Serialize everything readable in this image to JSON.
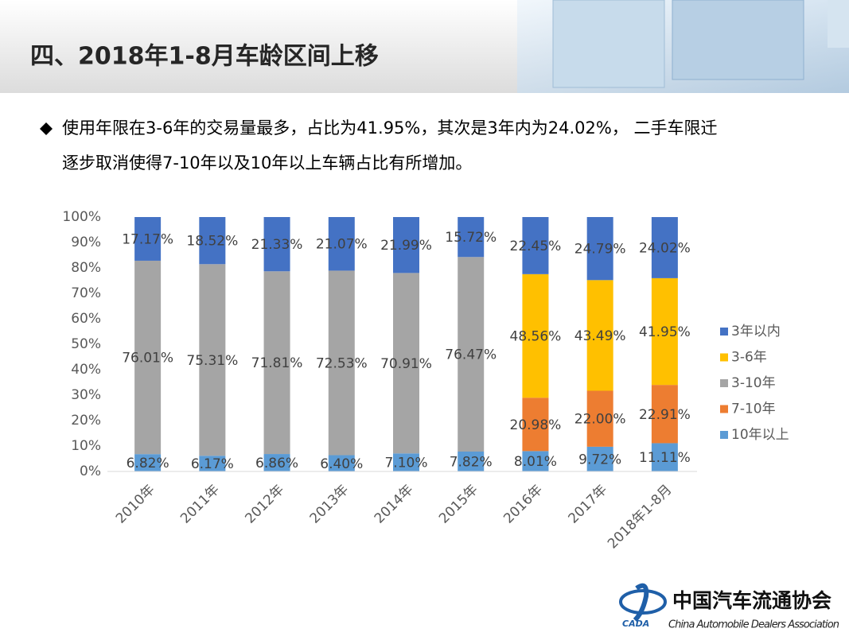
{
  "title": "四、2018年1-8月车龄区间上移",
  "bullet": [
    "使用年限在3-6年的交易量最多，占比为41.95%，其次是3年内为24.02%， 二手车限迁",
    "逐步取消使得7-10年以及10年以上车辆占比有所增加。"
  ],
  "logo": {
    "name": "中国汽车流通协会",
    "english": "China Automobile Dealers Association",
    "mark": "CADA"
  },
  "chart_data": {
    "type": "stacked_bar",
    "categories": [
      "2010年",
      "2011年",
      "2012年",
      "2013年",
      "2014年",
      "2015年",
      "2016年",
      "2017年",
      "2018年1-8月"
    ],
    "series": [
      {
        "name": "10年以上",
        "color": "#5b9bd5",
        "values": [
          6.82,
          6.17,
          6.86,
          6.4,
          7.1,
          7.82,
          8.01,
          9.72,
          11.11
        ],
        "value_labels": [
          "6.82%",
          "6.17%",
          "6.86%",
          "6.40%",
          "7.10%",
          "7.82%",
          "8.01%",
          "9.72%",
          "11.11%"
        ]
      },
      {
        "name": "7-10年",
        "color": "#ed7d31",
        "values": [
          null,
          null,
          null,
          null,
          null,
          null,
          20.98,
          22.0,
          22.91
        ],
        "value_labels": [
          null,
          null,
          null,
          null,
          null,
          null,
          "20.98%",
          "22.00%",
          "22.91%"
        ]
      },
      {
        "name": "3-10年",
        "color": "#a5a5a5",
        "values": [
          76.01,
          75.31,
          71.81,
          72.53,
          70.91,
          76.47,
          null,
          null,
          null
        ],
        "value_labels": [
          "76.01%",
          "75.31%",
          "71.81%",
          "72.53%",
          "70.91%",
          "76.47%",
          null,
          null,
          null
        ]
      },
      {
        "name": "3-6年",
        "color": "#ffc000",
        "values": [
          null,
          null,
          null,
          null,
          null,
          null,
          48.56,
          43.49,
          41.95
        ],
        "value_labels": [
          null,
          null,
          null,
          null,
          null,
          null,
          "48.56%",
          "43.49%",
          "41.95%"
        ]
      },
      {
        "name": "3年以内",
        "color": "#4472c4",
        "values": [
          17.17,
          18.52,
          21.33,
          21.07,
          21.99,
          15.72,
          22.45,
          24.79,
          24.02
        ],
        "value_labels": [
          "17.17%",
          "18.52%",
          "21.33%",
          "21.07%",
          "21.99%",
          "15.72%",
          "22.45%",
          "24.79%",
          "24.02%"
        ]
      }
    ],
    "ylim": [
      0,
      100
    ],
    "yticks": [
      {
        "value": 0,
        "label": "0%"
      },
      {
        "value": 10,
        "label": "10%"
      },
      {
        "value": 20,
        "label": "20%"
      },
      {
        "value": 30,
        "label": "30%"
      },
      {
        "value": 40,
        "label": "40%"
      },
      {
        "value": 50,
        "label": "50%"
      },
      {
        "value": 60,
        "label": "60%"
      },
      {
        "value": 70,
        "label": "70%"
      },
      {
        "value": 80,
        "label": "80%"
      },
      {
        "value": 90,
        "label": "90%"
      },
      {
        "value": 100,
        "label": "100%"
      }
    ],
    "legend": "right",
    "grid": false
  }
}
